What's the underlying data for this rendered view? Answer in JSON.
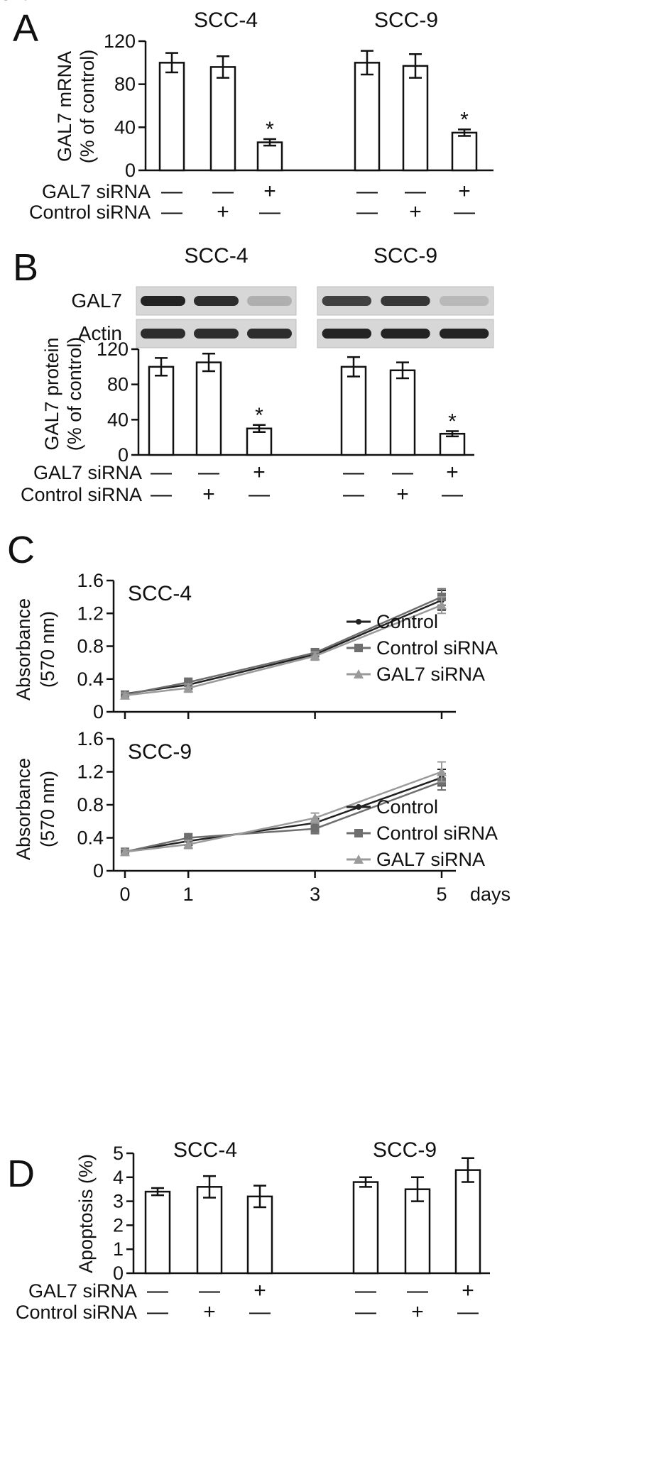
{
  "figure": {
    "panels": [
      "A",
      "B",
      "C",
      "D"
    ]
  },
  "colors": {
    "control": "#222222",
    "control_sirna": "#6e6e6e",
    "gal7_sirna": "#9a9a9a"
  },
  "chart_data": [
    {
      "id": "A",
      "type": "bar",
      "ylabel": [
        "GAL7 mRNA",
        "(% of control)"
      ],
      "ylim": [
        0,
        120
      ],
      "yticks": [
        0,
        40,
        80,
        120
      ],
      "grid": false,
      "groups": [
        {
          "name": "SCC-4",
          "values": [
            100,
            96,
            26
          ],
          "errors": [
            9,
            10,
            3
          ],
          "significant": [
            false,
            false,
            true
          ]
        },
        {
          "name": "SCC-9",
          "values": [
            100,
            97,
            35
          ],
          "errors": [
            11,
            11,
            3
          ],
          "significant": [
            false,
            false,
            true
          ]
        }
      ],
      "significance_mark": "*",
      "treatments": [
        {
          "label": "GAL7 siRNA",
          "signs": [
            "—",
            "—",
            "+",
            "—",
            "—",
            "+"
          ]
        },
        {
          "label": "Control siRNA",
          "signs": [
            "—",
            "+",
            "—",
            "—",
            "+",
            "—"
          ]
        }
      ]
    },
    {
      "id": "B",
      "type": "bar",
      "ylabel": [
        "GAL7 protein",
        "(% of control)"
      ],
      "ylim": [
        0,
        120
      ],
      "yticks": [
        0,
        40,
        80,
        120
      ],
      "grid": false,
      "blot": {
        "cell_lines": [
          "SCC-4",
          "SCC-9"
        ],
        "rows": [
          {
            "label": "GAL7",
            "intensity": [
              [
                1.0,
                0.95,
                0.3
              ],
              [
                0.85,
                0.9,
                0.25
              ]
            ]
          },
          {
            "label": "Actin",
            "intensity": [
              [
                0.95,
                0.95,
                0.95
              ],
              [
                1.0,
                1.0,
                1.0
              ]
            ]
          }
        ]
      },
      "groups": [
        {
          "name": "SCC-4",
          "values": [
            100,
            105,
            30
          ],
          "errors": [
            10,
            10,
            4
          ],
          "significant": [
            false,
            false,
            true
          ]
        },
        {
          "name": "SCC-9",
          "values": [
            100,
            96,
            24
          ],
          "errors": [
            11,
            9,
            3
          ],
          "significant": [
            false,
            false,
            true
          ]
        }
      ],
      "significance_mark": "*",
      "treatments": [
        {
          "label": "GAL7 siRNA",
          "signs": [
            "—",
            "—",
            "+",
            "—",
            "—",
            "+"
          ]
        },
        {
          "label": "Control siRNA",
          "signs": [
            "—",
            "+",
            "—",
            "—",
            "+",
            "—"
          ]
        }
      ]
    },
    {
      "id": "C-SCC-4",
      "type": "line",
      "title": "SCC-4",
      "ylabel": [
        "Absorbance",
        "(570 nm)"
      ],
      "ylim": [
        0,
        1.6
      ],
      "yticks": [
        "0",
        "0.4",
        "0.8",
        "1.2",
        "1.6"
      ],
      "x": [
        0,
        1,
        3,
        5
      ],
      "xticks": [
        "0",
        "1",
        "3",
        "5"
      ],
      "grid": false,
      "legend_position": "right",
      "series": [
        {
          "name": "Control",
          "values": [
            0.22,
            0.33,
            0.7,
            1.36
          ],
          "errors": [
            0.03,
            0.05,
            0.06,
            0.12
          ],
          "marker": "dot"
        },
        {
          "name": "Control siRNA",
          "values": [
            0.21,
            0.36,
            0.72,
            1.4
          ],
          "errors": [
            0.03,
            0.05,
            0.05,
            0.1
          ],
          "marker": "square"
        },
        {
          "name": "GAL7 siRNA",
          "values": [
            0.2,
            0.29,
            0.68,
            1.3
          ],
          "errors": [
            0.03,
            0.05,
            0.05,
            0.1
          ],
          "marker": "triangle"
        }
      ]
    },
    {
      "id": "C-SCC-9",
      "type": "line",
      "title": "SCC-9",
      "ylabel": [
        "Absorbance",
        "(570 nm)"
      ],
      "ylim": [
        0,
        1.6
      ],
      "yticks": [
        "0",
        "0.4",
        "0.8",
        "1.2",
        "1.6"
      ],
      "x": [
        0,
        1,
        3,
        5
      ],
      "xticks": [
        "0",
        "1",
        "3",
        "5"
      ],
      "xlabel": "days",
      "grid": false,
      "legend_position": "right",
      "series": [
        {
          "name": "Control",
          "values": [
            0.23,
            0.36,
            0.58,
            1.13
          ],
          "errors": [
            0.03,
            0.05,
            0.05,
            0.1
          ],
          "marker": "dot"
        },
        {
          "name": "Control siRNA",
          "values": [
            0.23,
            0.4,
            0.51,
            1.08
          ],
          "errors": [
            0.03,
            0.05,
            0.06,
            0.1
          ],
          "marker": "square"
        },
        {
          "name": "GAL7 siRNA",
          "values": [
            0.23,
            0.32,
            0.64,
            1.2
          ],
          "errors": [
            0.03,
            0.05,
            0.06,
            0.12
          ],
          "marker": "triangle"
        }
      ]
    },
    {
      "id": "D",
      "type": "bar",
      "ylabel": [
        "Apoptosis (%)"
      ],
      "ylim": [
        0,
        5
      ],
      "yticks": [
        0,
        1,
        2,
        3,
        4,
        5
      ],
      "grid": false,
      "groups": [
        {
          "name": "SCC-4",
          "values": [
            3.4,
            3.6,
            3.2
          ],
          "errors": [
            0.15,
            0.45,
            0.45
          ],
          "significant": [
            false,
            false,
            false
          ]
        },
        {
          "name": "SCC-9",
          "values": [
            3.8,
            3.5,
            4.3
          ],
          "errors": [
            0.2,
            0.5,
            0.5
          ],
          "significant": [
            false,
            false,
            false
          ]
        }
      ],
      "treatments": [
        {
          "label": "GAL7 siRNA",
          "signs": [
            "—",
            "—",
            "+",
            "—",
            "—",
            "+"
          ]
        },
        {
          "label": "Control siRNA",
          "signs": [
            "—",
            "+",
            "—",
            "—",
            "+",
            "—"
          ]
        }
      ]
    }
  ]
}
